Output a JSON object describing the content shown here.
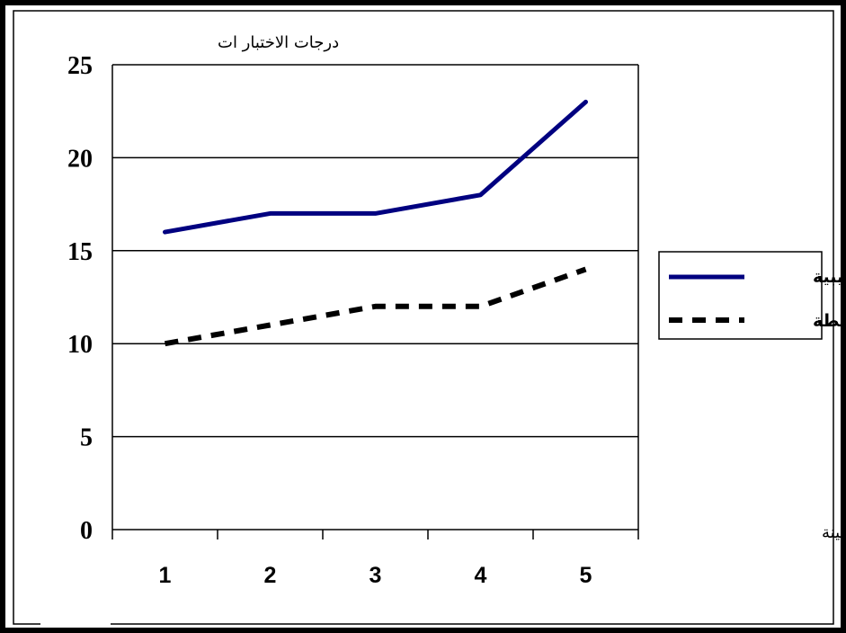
{
  "chart_data": {
    "type": "line",
    "ylabel": "درجات الاختبار ات",
    "xlabel": "عدد افراد العينة",
    "categories": [
      "1",
      "2",
      "3",
      "4",
      "5"
    ],
    "yticks": [
      "0",
      "5",
      "10",
      "15",
      "20",
      "25"
    ],
    "ylim": [
      0,
      25
    ],
    "grid": true,
    "legend_position": "right",
    "series": [
      {
        "name": "تجريبية",
        "values": [
          16,
          17,
          17,
          18,
          23
        ],
        "color": "#000080",
        "style": "solid"
      },
      {
        "name": "ضابطة",
        "values": [
          10,
          11,
          12,
          12,
          14
        ],
        "color": "#000000",
        "style": "dashed"
      }
    ]
  }
}
